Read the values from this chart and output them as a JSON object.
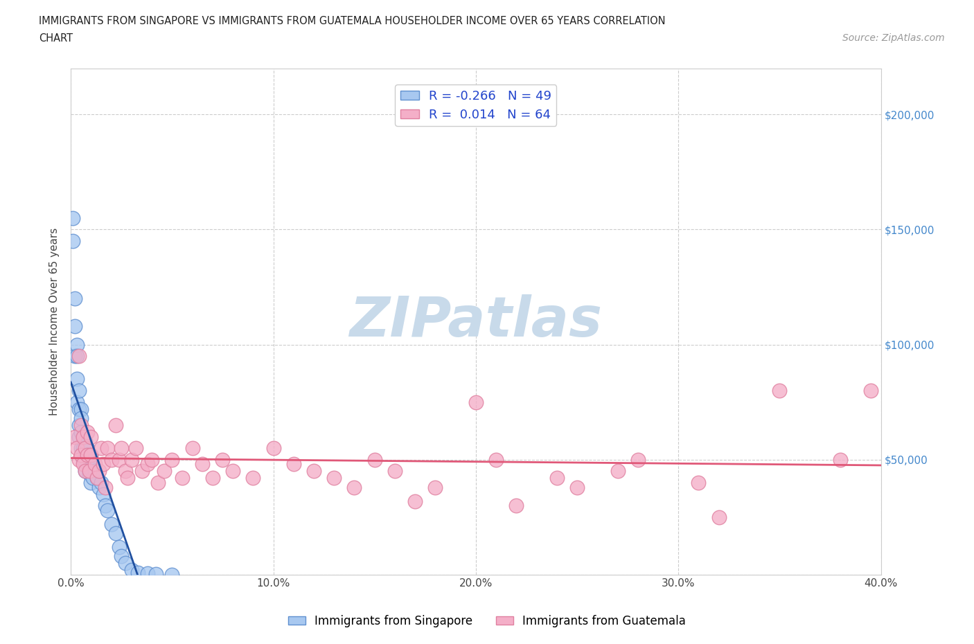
{
  "title_line1": "IMMIGRANTS FROM SINGAPORE VS IMMIGRANTS FROM GUATEMALA HOUSEHOLDER INCOME OVER 65 YEARS CORRELATION",
  "title_line2": "CHART",
  "source_text": "Source: ZipAtlas.com",
  "ylabel": "Householder Income Over 65 years",
  "xlim": [
    0.0,
    0.4
  ],
  "ylim": [
    0,
    220000
  ],
  "yticks": [
    0,
    50000,
    100000,
    150000,
    200000
  ],
  "ytick_labels_right": [
    "",
    "$50,000",
    "$100,000",
    "$150,000",
    "$200,000"
  ],
  "xticks": [
    0.0,
    0.1,
    0.2,
    0.3,
    0.4
  ],
  "xtick_labels": [
    "0.0%",
    "10.0%",
    "20.0%",
    "30.0%",
    "40.0%"
  ],
  "grid_color": "#cccccc",
  "background_color": "#ffffff",
  "singapore_color": "#a8c8f0",
  "guatemala_color": "#f4afc8",
  "singapore_edge": "#6090d0",
  "guatemala_edge": "#e080a0",
  "r_singapore": -0.266,
  "n_singapore": 49,
  "r_guatemala": 0.014,
  "n_guatemala": 64,
  "trend_singapore_color": "#2050a0",
  "trend_singapore_dash_color": "#a0b8d8",
  "trend_guatemala_color": "#e05878",
  "watermark_color": "#c8daea",
  "legend_r_color": "#2244cc",
  "tick_label_color": "#4488cc",
  "singapore_x": [
    0.001,
    0.001,
    0.002,
    0.002,
    0.002,
    0.003,
    0.003,
    0.003,
    0.003,
    0.004,
    0.004,
    0.004,
    0.004,
    0.005,
    0.005,
    0.005,
    0.005,
    0.006,
    0.006,
    0.006,
    0.007,
    0.007,
    0.007,
    0.008,
    0.008,
    0.009,
    0.009,
    0.01,
    0.01,
    0.01,
    0.011,
    0.011,
    0.012,
    0.013,
    0.014,
    0.015,
    0.016,
    0.017,
    0.018,
    0.02,
    0.022,
    0.024,
    0.025,
    0.027,
    0.03,
    0.033,
    0.038,
    0.042,
    0.05
  ],
  "singapore_y": [
    145000,
    155000,
    120000,
    108000,
    95000,
    100000,
    95000,
    85000,
    75000,
    80000,
    72000,
    65000,
    60000,
    72000,
    68000,
    62000,
    55000,
    60000,
    55000,
    50000,
    58000,
    52000,
    45000,
    55000,
    48000,
    50000,
    44000,
    52000,
    46000,
    40000,
    48000,
    42000,
    45000,
    42000,
    38000,
    40000,
    35000,
    30000,
    28000,
    22000,
    18000,
    12000,
    8000,
    5000,
    2000,
    1000,
    500,
    200,
    50
  ],
  "guatemala_x": [
    0.002,
    0.003,
    0.004,
    0.004,
    0.005,
    0.005,
    0.006,
    0.006,
    0.007,
    0.007,
    0.008,
    0.008,
    0.009,
    0.01,
    0.01,
    0.012,
    0.013,
    0.014,
    0.015,
    0.016,
    0.017,
    0.018,
    0.02,
    0.022,
    0.024,
    0.025,
    0.027,
    0.028,
    0.03,
    0.032,
    0.035,
    0.038,
    0.04,
    0.043,
    0.046,
    0.05,
    0.055,
    0.06,
    0.065,
    0.07,
    0.075,
    0.08,
    0.09,
    0.1,
    0.11,
    0.12,
    0.13,
    0.14,
    0.15,
    0.16,
    0.17,
    0.18,
    0.2,
    0.21,
    0.22,
    0.24,
    0.25,
    0.27,
    0.28,
    0.31,
    0.32,
    0.35,
    0.38,
    0.395
  ],
  "guatemala_y": [
    60000,
    55000,
    95000,
    50000,
    65000,
    52000,
    60000,
    48000,
    55000,
    45000,
    62000,
    52000,
    45000,
    60000,
    52000,
    48000,
    42000,
    45000,
    55000,
    48000,
    38000,
    55000,
    50000,
    65000,
    50000,
    55000,
    45000,
    42000,
    50000,
    55000,
    45000,
    48000,
    50000,
    40000,
    45000,
    50000,
    42000,
    55000,
    48000,
    42000,
    50000,
    45000,
    42000,
    55000,
    48000,
    45000,
    42000,
    38000,
    50000,
    45000,
    32000,
    38000,
    75000,
    50000,
    30000,
    42000,
    38000,
    45000,
    50000,
    40000,
    25000,
    80000,
    50000,
    80000
  ]
}
